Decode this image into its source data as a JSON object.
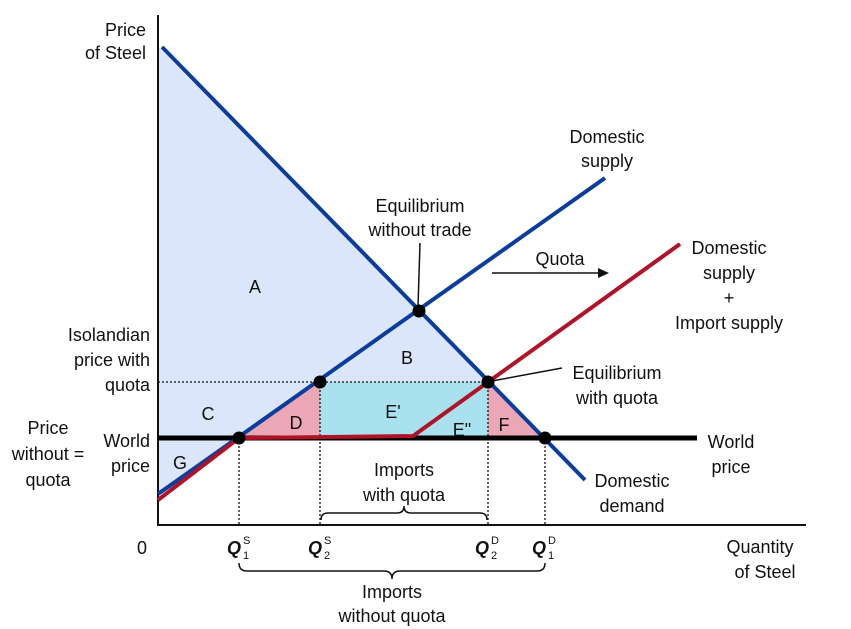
{
  "axes": {
    "y_label_1": "Price",
    "y_label_2": "of Steel",
    "x_label_1": "Quantity",
    "x_label_2": "of Steel",
    "origin": "0"
  },
  "curves": {
    "domestic_supply_1": "Domestic",
    "domestic_supply_2": "supply",
    "combined_supply_1": "Domestic",
    "combined_supply_2": "supply",
    "combined_supply_3": "+",
    "combined_supply_4": "Import supply",
    "domestic_demand_1": "Domestic",
    "domestic_demand_2": "demand",
    "world_price_right_1": "World",
    "world_price_right_2": "price"
  },
  "annotations": {
    "eq_no_trade_1": "Equilibrium",
    "eq_no_trade_2": "without trade",
    "eq_quota_1": "Equilibrium",
    "eq_quota_2": "with quota",
    "quota": "Quota",
    "isolandian_1": "Isolandian",
    "isolandian_2": "price with",
    "isolandian_3": "quota",
    "price_without_1": "Price",
    "price_without_2": "without =",
    "price_without_3": "quota",
    "world_price_left_1": "World",
    "world_price_left_2": "price",
    "imports_with_1": "Imports",
    "imports_with_2": "with quota",
    "imports_without_1": "Imports",
    "imports_without_2": "without quota"
  },
  "areas": {
    "A": "A",
    "B": "B",
    "C": "C",
    "D": "D",
    "E1": "E'",
    "E2": "E\"",
    "F": "F",
    "G": "G"
  },
  "quantities": {
    "q1s": "Q",
    "q1s_sup": "S",
    "q1s_sub": "1",
    "q2s": "Q",
    "q2s_sup": "S",
    "q2s_sub": "2",
    "q2d": "Q",
    "q2d_sup": "D",
    "q2d_sub": "2",
    "q1d": "Q",
    "q1d_sup": "D",
    "q1d_sub": "1"
  },
  "colors": {
    "blue_line": "#0a3d9c",
    "red_line": "#b01227",
    "light_blue_fill": "#dce6fb",
    "cyan_fill": "#a9e2ee",
    "pink_fill": "#eba7b5"
  }
}
